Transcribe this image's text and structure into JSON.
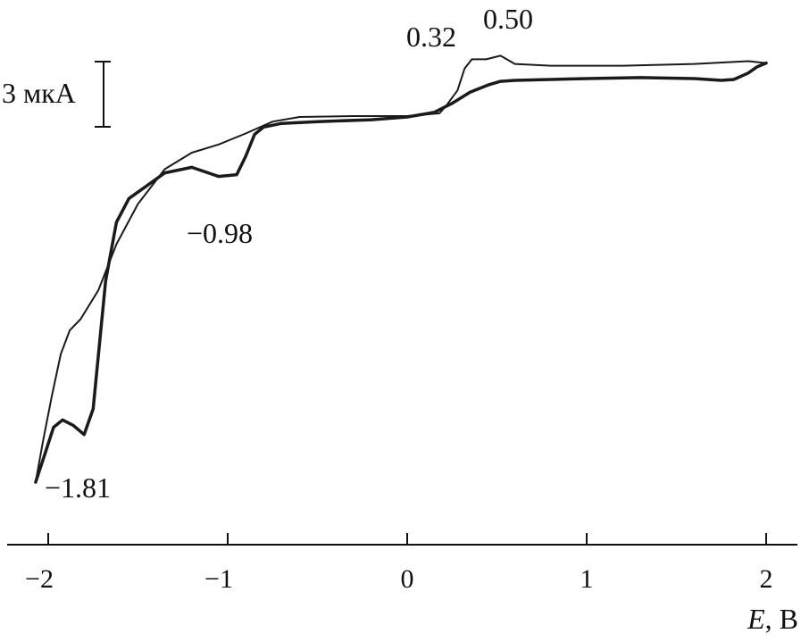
{
  "chart_data": {
    "type": "line",
    "title": "",
    "xlabel": "E, В",
    "xlabel_italic": "E",
    "xlabel_unit": ", В",
    "ylabel": "",
    "xlim": [
      -2.2,
      2.2
    ],
    "xticks": [
      -2,
      -1,
      0,
      1,
      2
    ],
    "xtick_labels": [
      "−2",
      "−1",
      "0",
      "1",
      "2"
    ],
    "scale_bar_label": "3 мкА",
    "scale_bar_value_uA": 3,
    "grid": false,
    "legend": "none",
    "annotations": [
      {
        "text": "0.32",
        "x": 0.32
      },
      {
        "text": "0.50",
        "x": 0.5
      },
      {
        "text": "−0.98",
        "x": -0.98
      },
      {
        "text": "−1.81",
        "x": -1.81
      }
    ],
    "series": [
      {
        "stroke_width": 2,
        "x": [
          2.0,
          1.9,
          1.6,
          1.2,
          0.8,
          0.6,
          0.52,
          0.44,
          0.36,
          0.32,
          0.28,
          0.22,
          0.18,
          0.0,
          -0.3,
          -0.6,
          -0.75,
          -0.9,
          -1.05,
          -1.2,
          -1.35,
          -1.5,
          -1.62,
          -1.72,
          -1.82,
          -1.88,
          -1.93,
          -1.98,
          -2.03,
          -2.07
        ],
        "y": [
          2.9,
          3.0,
          2.85,
          2.75,
          2.75,
          2.85,
          3.3,
          3.1,
          3.1,
          2.6,
          1.4,
          0.6,
          0.15,
          0.0,
          0.0,
          -0.05,
          -0.3,
          -0.95,
          -1.55,
          -2.0,
          -2.9,
          -4.8,
          -7.0,
          -9.5,
          -11.1,
          -11.7,
          -13.0,
          -15.3,
          -17.8,
          -20.0
        ]
      },
      {
        "stroke_width": 3.5,
        "x": [
          -2.07,
          -2.02,
          -1.97,
          -1.92,
          -1.86,
          -1.8,
          -1.75,
          -1.72,
          -1.68,
          -1.62,
          -1.55,
          -1.45,
          -1.35,
          -1.2,
          -1.05,
          -0.95,
          -0.9,
          -0.85,
          -0.8,
          -0.7,
          -0.5,
          -0.2,
          0.0,
          0.15,
          0.25,
          0.35,
          0.45,
          0.52,
          0.6,
          0.8,
          1.0,
          1.3,
          1.6,
          1.75,
          1.82,
          1.9,
          1.95,
          2.0
        ],
        "y": [
          -20.0,
          -18.5,
          -17.0,
          -16.6,
          -16.9,
          -17.4,
          -16.0,
          -13.0,
          -9.0,
          -5.8,
          -4.5,
          -3.8,
          -3.1,
          -2.8,
          -3.3,
          -3.2,
          -2.2,
          -1.0,
          -0.6,
          -0.4,
          -0.3,
          -0.2,
          -0.05,
          0.2,
          0.7,
          1.3,
          1.7,
          1.9,
          1.95,
          2.0,
          2.05,
          2.1,
          2.05,
          1.95,
          2.0,
          2.35,
          2.7,
          2.9
        ]
      }
    ]
  }
}
